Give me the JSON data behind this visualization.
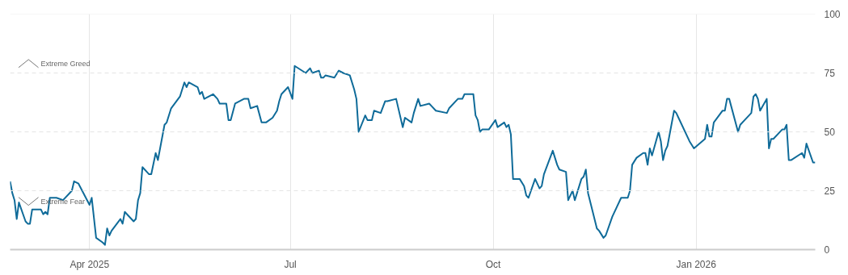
{
  "chart_data": {
    "type": "line",
    "x": [
      "2025-02-24",
      "2025-02-25",
      "2025-02-26",
      "2025-02-27",
      "2025-02-28",
      "2025-03-03",
      "2025-03-04",
      "2025-03-05",
      "2025-03-06",
      "2025-03-10",
      "2025-03-11",
      "2025-03-12",
      "2025-03-13",
      "2025-03-14",
      "2025-03-17",
      "2025-03-20",
      "2025-03-24",
      "2025-03-25",
      "2025-03-27",
      "2025-04-01",
      "2025-04-02",
      "2025-04-04",
      "2025-04-07",
      "2025-04-08",
      "2025-04-09",
      "2025-04-10",
      "2025-04-11",
      "2025-04-15",
      "2025-04-16",
      "2025-04-17",
      "2025-04-21",
      "2025-04-22",
      "2025-04-23",
      "2025-04-24",
      "2025-04-25",
      "2025-04-28",
      "2025-04-29",
      "2025-05-01",
      "2025-05-02",
      "2025-05-05",
      "2025-05-06",
      "2025-05-08",
      "2025-05-12",
      "2025-05-14",
      "2025-05-15",
      "2025-05-16",
      "2025-05-20",
      "2025-05-21",
      "2025-05-22",
      "2025-05-23",
      "2025-05-27",
      "2025-05-29",
      "2025-05-30",
      "2025-06-02",
      "2025-06-03",
      "2025-06-04",
      "2025-06-06",
      "2025-06-10",
      "2025-06-12",
      "2025-06-13",
      "2025-06-16",
      "2025-06-18",
      "2025-06-20",
      "2025-06-23",
      "2025-06-25",
      "2025-06-26",
      "2025-06-27",
      "2025-06-30",
      "2025-07-02",
      "2025-07-03",
      "2025-07-08",
      "2025-07-10",
      "2025-07-11",
      "2025-07-14",
      "2025-07-15",
      "2025-07-16",
      "2025-07-17",
      "2025-07-21",
      "2025-07-23",
      "2025-07-25",
      "2025-07-28",
      "2025-07-30",
      "2025-07-31",
      "2025-08-01",
      "2025-08-04",
      "2025-08-05",
      "2025-08-07",
      "2025-08-08",
      "2025-08-11",
      "2025-08-13",
      "2025-08-14",
      "2025-08-18",
      "2025-08-21",
      "2025-08-22",
      "2025-08-25",
      "2025-08-26",
      "2025-08-28",
      "2025-08-29",
      "2025-09-02",
      "2025-09-03",
      "2025-09-05",
      "2025-09-10",
      "2025-09-11",
      "2025-09-15",
      "2025-09-17",
      "2025-09-18",
      "2025-09-22",
      "2025-09-23",
      "2025-09-24",
      "2025-09-25",
      "2025-09-26",
      "2025-09-29",
      "2025-10-02",
      "2025-10-03",
      "2025-10-06",
      "2025-10-07",
      "2025-10-08",
      "2025-10-09",
      "2025-10-10",
      "2025-10-13",
      "2025-10-15",
      "2025-10-16",
      "2025-10-17",
      "2025-10-20",
      "2025-10-22",
      "2025-10-23",
      "2025-10-24",
      "2025-10-28",
      "2025-10-30",
      "2025-10-31",
      "2025-11-03",
      "2025-11-04",
      "2025-11-06",
      "2025-11-07",
      "2025-11-10",
      "2025-11-11",
      "2025-11-12",
      "2025-11-13",
      "2025-11-17",
      "2025-11-18",
      "2025-11-20",
      "2025-11-21",
      "2025-11-24",
      "2025-11-28",
      "2025-12-01",
      "2025-12-02",
      "2025-12-03",
      "2025-12-05",
      "2025-12-08",
      "2025-12-09",
      "2025-12-10",
      "2025-12-11",
      "2025-12-12",
      "2025-12-15",
      "2025-12-16",
      "2025-12-17",
      "2025-12-18",
      "2025-12-19",
      "2025-12-22",
      "2025-12-23",
      "2025-12-24",
      "2025-12-29",
      "2025-12-31",
      "2026-01-05",
      "2026-01-06",
      "2026-01-07",
      "2026-01-08",
      "2026-01-09",
      "2026-01-13",
      "2026-01-14",
      "2026-01-15",
      "2026-01-16",
      "2026-01-20",
      "2026-01-21",
      "2026-01-23",
      "2026-01-26",
      "2026-01-27",
      "2026-01-28",
      "2026-01-29",
      "2026-01-30",
      "2026-02-02",
      "2026-02-03",
      "2026-02-04",
      "2026-02-05",
      "2026-02-09",
      "2026-02-10",
      "2026-02-11",
      "2026-02-12",
      "2026-02-13",
      "2026-02-18",
      "2026-02-19",
      "2026-02-20",
      "2026-02-23",
      "2026-02-24"
    ],
    "series": [
      {
        "color": "#0f6b99",
        "values": [
          29,
          24,
          21,
          13,
          20,
          12,
          11,
          11,
          17,
          17,
          15,
          16,
          15,
          22,
          22,
          21,
          25,
          29,
          28,
          19,
          22,
          5,
          3,
          2,
          9,
          6,
          8,
          13,
          11,
          16,
          12,
          13,
          21,
          24,
          35,
          32,
          32,
          41,
          38,
          53,
          54,
          60,
          65,
          71,
          69,
          71,
          69,
          66,
          67,
          64,
          66,
          64,
          62,
          62,
          55,
          55,
          62,
          64,
          64,
          60,
          61,
          54,
          54,
          56,
          59,
          63,
          66,
          69,
          64,
          78,
          75,
          77,
          75,
          76,
          73,
          73,
          74,
          73,
          76,
          75,
          74,
          68,
          64,
          50,
          57,
          55,
          55,
          59,
          58,
          63,
          63,
          64,
          52,
          56,
          54,
          58,
          64,
          61,
          62,
          61,
          59,
          58,
          60,
          64,
          64,
          66,
          66,
          57,
          55,
          50,
          51,
          51,
          55,
          52,
          54,
          52,
          53,
          49,
          30,
          30,
          27,
          23,
          22,
          30,
          26,
          27,
          32,
          42,
          36,
          34,
          33,
          21,
          25,
          21,
          30,
          31,
          34,
          24,
          9,
          8,
          5,
          6,
          14,
          22,
          22,
          25,
          36,
          39,
          41,
          41,
          36,
          43,
          40,
          50,
          46,
          38,
          42,
          44,
          59,
          58,
          56,
          46,
          43,
          47,
          53,
          48,
          48,
          54,
          59,
          59,
          64,
          64,
          50,
          53,
          55,
          58,
          65,
          66,
          64,
          59,
          64,
          43,
          47,
          47,
          51,
          51,
          53,
          38,
          38,
          41,
          39,
          45,
          37,
          37
        ]
      }
    ],
    "xlim": [
      "2025-02-24",
      "2026-02-24"
    ],
    "xticks": [
      {
        "value": "2025-04-01",
        "label": "Apr 2025"
      },
      {
        "value": "2025-07-01",
        "label": "Jul"
      },
      {
        "value": "2025-10-01",
        "label": "Oct"
      },
      {
        "value": "2026-01-01",
        "label": "Jan 2026"
      }
    ],
    "ylim": [
      0,
      100
    ],
    "yticks": [
      0,
      25,
      50,
      75,
      100
    ],
    "grid": true,
    "marker": "none",
    "line_style": "solid",
    "annotations": [
      "Extreme Greed",
      "Extreme Fear"
    ]
  }
}
